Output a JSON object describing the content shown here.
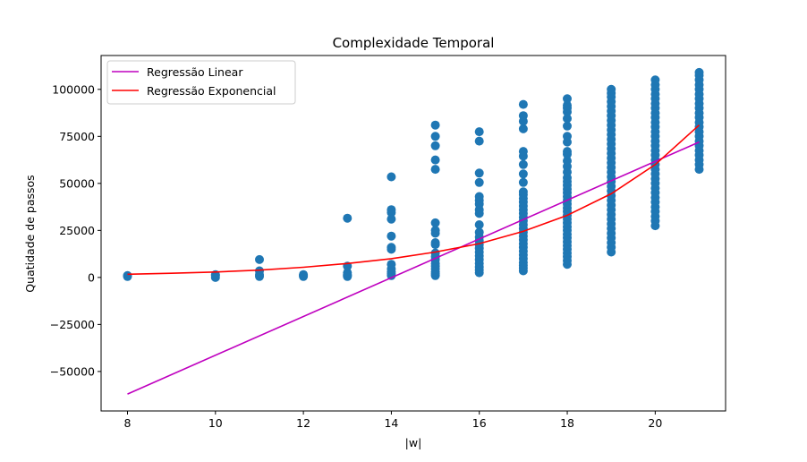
{
  "chart_data": {
    "type": "scatter",
    "title": "Complexidade Temporal",
    "xlabel": "|w|",
    "ylabel": "Quatidade de passos",
    "xlim": [
      7.4,
      21.6
    ],
    "ylim": [
      -71000,
      118000
    ],
    "xticks": [
      8,
      10,
      12,
      14,
      16,
      18,
      20
    ],
    "yticks": [
      -50000,
      -25000,
      0,
      25000,
      50000,
      75000,
      100000
    ],
    "ytick_labels": [
      "−50000",
      "−25000",
      "0",
      "25000",
      "50000",
      "75000",
      "100000"
    ],
    "grid": false,
    "legend_position": "upper-left",
    "scatter": {
      "color": "#1f77b4",
      "points": [
        [
          8,
          500
        ],
        [
          8,
          1000
        ],
        [
          10,
          0
        ],
        [
          10,
          1000
        ],
        [
          10,
          1500
        ],
        [
          11,
          500
        ],
        [
          11,
          1500
        ],
        [
          11,
          3500
        ],
        [
          11,
          9500
        ],
        [
          12,
          500
        ],
        [
          12,
          1000
        ],
        [
          12,
          1500
        ],
        [
          13,
          500
        ],
        [
          13,
          1000
        ],
        [
          13,
          1500
        ],
        [
          13,
          2500
        ],
        [
          13,
          6000
        ],
        [
          13,
          31500
        ],
        [
          14,
          1000
        ],
        [
          14,
          2000
        ],
        [
          14,
          3000
        ],
        [
          14,
          4500
        ],
        [
          14,
          7000
        ],
        [
          14,
          15000
        ],
        [
          14,
          16000
        ],
        [
          14,
          22000
        ],
        [
          14,
          31000
        ],
        [
          14,
          34500
        ],
        [
          14,
          36000
        ],
        [
          14,
          53500
        ],
        [
          15,
          1000
        ],
        [
          15,
          2000
        ],
        [
          15,
          3000
        ],
        [
          15,
          4500
        ],
        [
          15,
          6000
        ],
        [
          15,
          7500
        ],
        [
          15,
          9500
        ],
        [
          15,
          11000
        ],
        [
          15,
          13000
        ],
        [
          15,
          17500
        ],
        [
          15,
          18500
        ],
        [
          15,
          23500
        ],
        [
          15,
          25000
        ],
        [
          15,
          29000
        ],
        [
          15,
          57500
        ],
        [
          15,
          62500
        ],
        [
          15,
          70000
        ],
        [
          15,
          75000
        ],
        [
          15,
          81000
        ],
        [
          16,
          2500
        ],
        [
          16,
          4000
        ],
        [
          16,
          5500
        ],
        [
          16,
          7500
        ],
        [
          16,
          9500
        ],
        [
          16,
          11500
        ],
        [
          16,
          13500
        ],
        [
          16,
          15500
        ],
        [
          16,
          17500
        ],
        [
          16,
          19500
        ],
        [
          16,
          21500
        ],
        [
          16,
          24000
        ],
        [
          16,
          28000
        ],
        [
          16,
          34000
        ],
        [
          16,
          36000
        ],
        [
          16,
          39000
        ],
        [
          16,
          41000
        ],
        [
          16,
          43000
        ],
        [
          16,
          50500
        ],
        [
          16,
          55500
        ],
        [
          16,
          72500
        ],
        [
          16,
          77500
        ],
        [
          17,
          3500
        ],
        [
          17,
          5000
        ],
        [
          17,
          6500
        ],
        [
          17,
          8000
        ],
        [
          17,
          10000
        ],
        [
          17,
          12000
        ],
        [
          17,
          14000
        ],
        [
          17,
          16000
        ],
        [
          17,
          18000
        ],
        [
          17,
          20000
        ],
        [
          17,
          22000
        ],
        [
          17,
          24000
        ],
        [
          17,
          26000
        ],
        [
          17,
          28000
        ],
        [
          17,
          30000
        ],
        [
          17,
          32000
        ],
        [
          17,
          34000
        ],
        [
          17,
          36000
        ],
        [
          17,
          38000
        ],
        [
          17,
          40000
        ],
        [
          17,
          42000
        ],
        [
          17,
          44000
        ],
        [
          17,
          45500
        ],
        [
          17,
          50500
        ],
        [
          17,
          55000
        ],
        [
          17,
          60000
        ],
        [
          17,
          64500
        ],
        [
          17,
          67000
        ],
        [
          17,
          79000
        ],
        [
          17,
          83000
        ],
        [
          17,
          86000
        ],
        [
          17,
          92000
        ],
        [
          18,
          7000
        ],
        [
          18,
          9000
        ],
        [
          18,
          11000
        ],
        [
          18,
          13000
        ],
        [
          18,
          15000
        ],
        [
          18,
          17000
        ],
        [
          18,
          19000
        ],
        [
          18,
          21000
        ],
        [
          18,
          23000
        ],
        [
          18,
          25000
        ],
        [
          18,
          27000
        ],
        [
          18,
          29000
        ],
        [
          18,
          31000
        ],
        [
          18,
          33000
        ],
        [
          18,
          35000
        ],
        [
          18,
          37000
        ],
        [
          18,
          39000
        ],
        [
          18,
          41000
        ],
        [
          18,
          43000
        ],
        [
          18,
          45000
        ],
        [
          18,
          47000
        ],
        [
          18,
          49000
        ],
        [
          18,
          51000
        ],
        [
          18,
          53000
        ],
        [
          18,
          56000
        ],
        [
          18,
          59000
        ],
        [
          18,
          62000
        ],
        [
          18,
          65500
        ],
        [
          18,
          67000
        ],
        [
          18,
          72000
        ],
        [
          18,
          75000
        ],
        [
          18,
          80500
        ],
        [
          18,
          84500
        ],
        [
          18,
          88000
        ],
        [
          18,
          90000
        ],
        [
          18,
          91500
        ],
        [
          18,
          95000
        ],
        [
          19,
          13500
        ],
        [
          19,
          16000
        ],
        [
          19,
          18500
        ],
        [
          19,
          21000
        ],
        [
          19,
          23500
        ],
        [
          19,
          26000
        ],
        [
          19,
          28500
        ],
        [
          19,
          31000
        ],
        [
          19,
          33500
        ],
        [
          19,
          36000
        ],
        [
          19,
          38500
        ],
        [
          19,
          41000
        ],
        [
          19,
          43500
        ],
        [
          19,
          46000
        ],
        [
          19,
          48500
        ],
        [
          19,
          51000
        ],
        [
          19,
          53500
        ],
        [
          19,
          56000
        ],
        [
          19,
          58500
        ],
        [
          19,
          61000
        ],
        [
          19,
          63500
        ],
        [
          19,
          66000
        ],
        [
          19,
          68500
        ],
        [
          19,
          71000
        ],
        [
          19,
          73500
        ],
        [
          19,
          76000
        ],
        [
          19,
          78500
        ],
        [
          19,
          81000
        ],
        [
          19,
          83500
        ],
        [
          19,
          86000
        ],
        [
          19,
          88500
        ],
        [
          19,
          91000
        ],
        [
          19,
          93500
        ],
        [
          19,
          96000
        ],
        [
          19,
          98000
        ],
        [
          19,
          100000
        ],
        [
          20,
          27500
        ],
        [
          20,
          30000
        ],
        [
          20,
          32500
        ],
        [
          20,
          35000
        ],
        [
          20,
          37500
        ],
        [
          20,
          40000
        ],
        [
          20,
          42500
        ],
        [
          20,
          45000
        ],
        [
          20,
          47500
        ],
        [
          20,
          50000
        ],
        [
          20,
          52500
        ],
        [
          20,
          55000
        ],
        [
          20,
          57500
        ],
        [
          20,
          60000
        ],
        [
          20,
          62500
        ],
        [
          20,
          65000
        ],
        [
          20,
          67500
        ],
        [
          20,
          70000
        ],
        [
          20,
          72500
        ],
        [
          20,
          75000
        ],
        [
          20,
          77500
        ],
        [
          20,
          80000
        ],
        [
          20,
          82500
        ],
        [
          20,
          85000
        ],
        [
          20,
          87500
        ],
        [
          20,
          90000
        ],
        [
          20,
          92500
        ],
        [
          20,
          95000
        ],
        [
          20,
          97500
        ],
        [
          20,
          100000
        ],
        [
          20,
          102500
        ],
        [
          20,
          105000
        ],
        [
          21,
          57500
        ],
        [
          21,
          60000
        ],
        [
          21,
          62500
        ],
        [
          21,
          65000
        ],
        [
          21,
          67500
        ],
        [
          21,
          70000
        ],
        [
          21,
          72500
        ],
        [
          21,
          75000
        ],
        [
          21,
          77500
        ],
        [
          21,
          80000
        ],
        [
          21,
          82500
        ],
        [
          21,
          85000
        ],
        [
          21,
          87500
        ],
        [
          21,
          90000
        ],
        [
          21,
          92500
        ],
        [
          21,
          95000
        ],
        [
          21,
          97500
        ],
        [
          21,
          100000
        ],
        [
          21,
          102500
        ],
        [
          21,
          105000
        ],
        [
          21,
          107500
        ],
        [
          21,
          109000
        ]
      ]
    },
    "series": [
      {
        "name": "Regressão Linear",
        "type": "line",
        "color": "#bf00bf",
        "x": [
          8,
          21
        ],
        "y": [
          -62000,
          72000
        ]
      },
      {
        "name": "Regressão Exponencial",
        "type": "line",
        "color": "#ff0000",
        "x": [
          8,
          9,
          10,
          11,
          12,
          13,
          14,
          15,
          16,
          17,
          18,
          19,
          20,
          21
        ],
        "y": [
          1700,
          2200,
          2900,
          3900,
          5400,
          7400,
          10000,
          13500,
          18000,
          24500,
          33000,
          44500,
          60000,
          81000
        ]
      }
    ]
  }
}
